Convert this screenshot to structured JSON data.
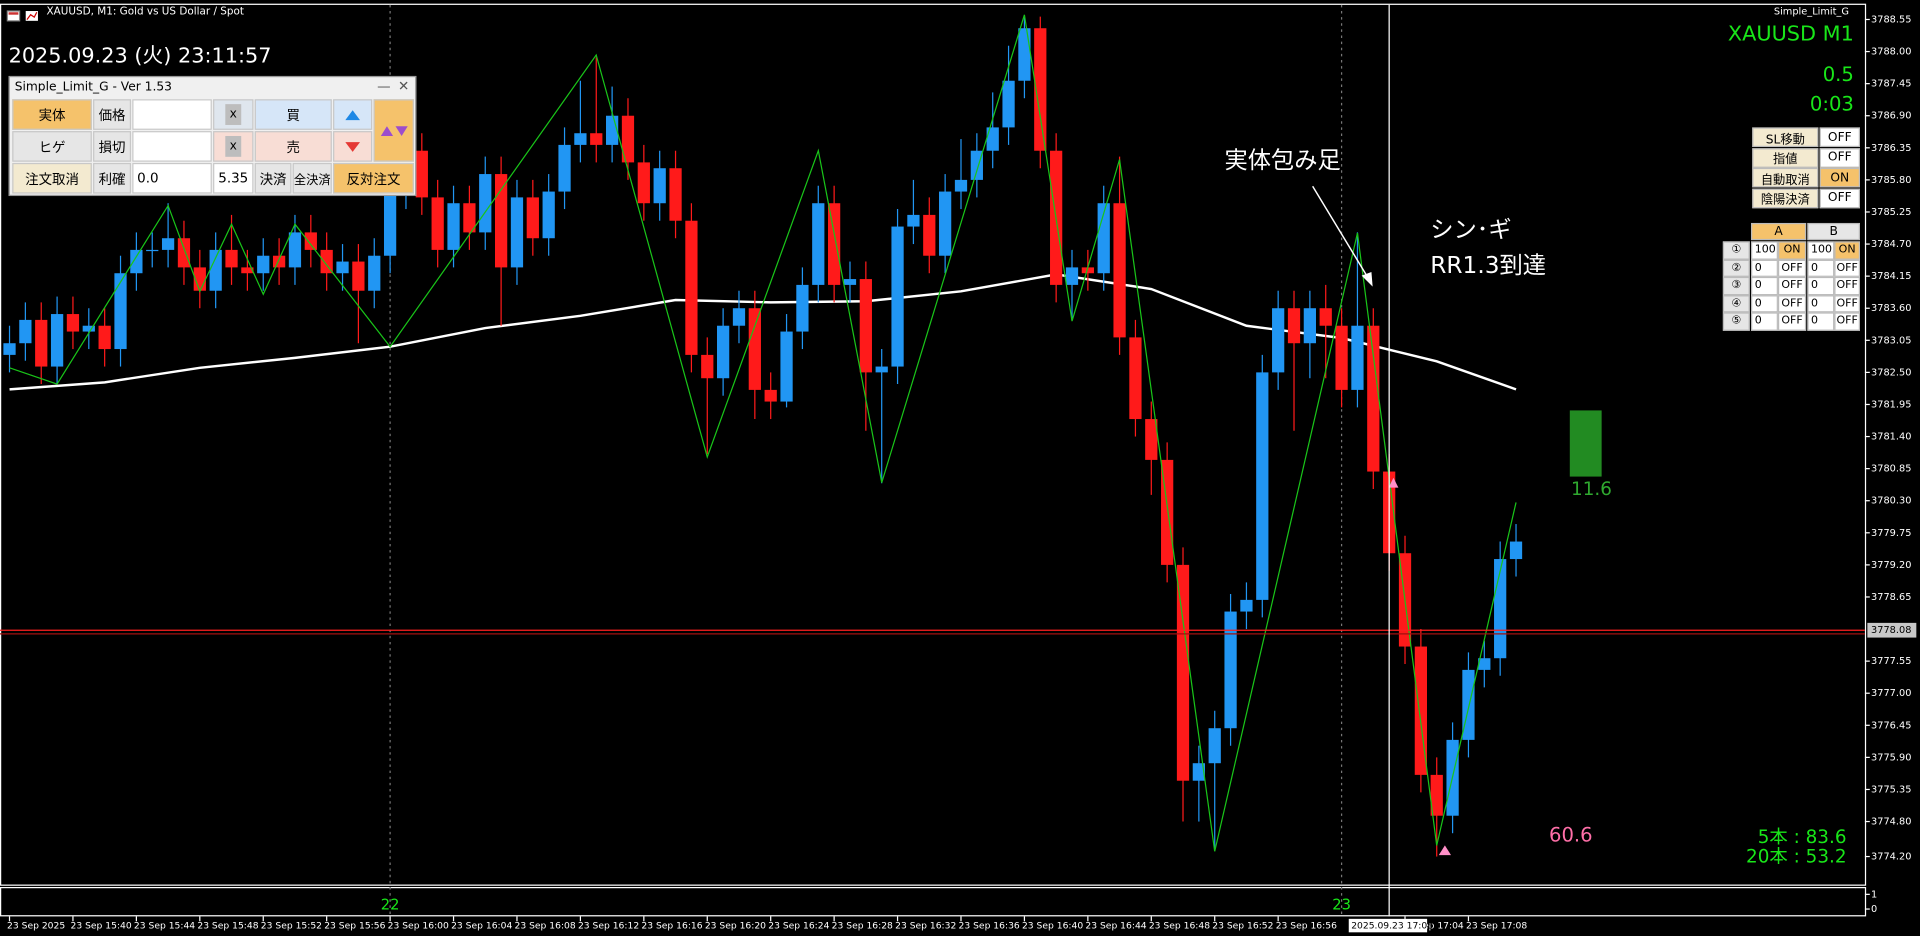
{
  "window": {
    "symbol_info": "XAUUSD, M1:  Gold vs US Dollar / Spot",
    "clock": "2025.09.23 (火) 23:11:57",
    "ea_name": "Simple_Limit_G",
    "symbol_tf": "XAUUSD  M1",
    "spread": "0.5",
    "countdown": "0:03"
  },
  "panel": {
    "title": "Simple_Limit_G - Ver 1.53",
    "body": "実体",
    "wick": "ヒゲ",
    "price": "価格",
    "stop": "損切",
    "take": "利確",
    "clear": "x",
    "buy": "買",
    "sell": "売",
    "cancel": "注文取消",
    "tp_value": "0.0",
    "lot": "5.35",
    "close": "決済",
    "close_all": "全決済",
    "reverse": "反対注文"
  },
  "status_table": [
    {
      "label": "SL移動",
      "state": "OFF"
    },
    {
      "label": "指値",
      "state": "OFF"
    },
    {
      "label": "自動取消",
      "state": "ON"
    },
    {
      "label": "陰陽決済",
      "state": "OFF"
    }
  ],
  "ab_table": {
    "headers": [
      "A",
      "B"
    ],
    "rows": [
      [
        "①",
        "100",
        "ON",
        "100",
        "ON"
      ],
      [
        "②",
        "0",
        "OFF",
        "0",
        "OFF"
      ],
      [
        "③",
        "0",
        "OFF",
        "0",
        "OFF"
      ],
      [
        "④",
        "0",
        "OFF",
        "0",
        "OFF"
      ],
      [
        "⑤",
        "0",
        "OFF",
        "0",
        "OFF"
      ]
    ]
  },
  "annotations": {
    "engulfing": "実体包み足",
    "signal": "シン･ギ",
    "rr": "RR1.3到達"
  },
  "stats": {
    "box_value": "11.6",
    "pink_value": "60.6",
    "line1": "5本 : 83.6",
    "line2": "20本 : 53.2"
  },
  "chart_data": {
    "type": "candlestick",
    "up_color": "#2196f3",
    "down_color": "#ff1a1a",
    "open": [
      3782.8,
      3783.0,
      3783.4,
      3782.6,
      3783.5,
      3783.2,
      3783.3,
      3782.9,
      3784.2,
      3784.6,
      3784.6,
      3784.8,
      3784.3,
      3783.9,
      3784.6,
      3784.3,
      3784.2,
      3784.5,
      3784.3,
      3784.9,
      3784.6,
      3784.2,
      3784.4,
      3783.9,
      3784.5,
      3785.6,
      3786.3,
      3785.5,
      3784.6,
      3785.4,
      3784.9,
      3785.9,
      3784.3,
      3785.5,
      3784.8,
      3785.6,
      3786.4,
      3786.6,
      3786.4,
      3786.9,
      3786.1,
      3785.4,
      3786.0,
      3785.1,
      3782.8,
      3782.4,
      3783.3,
      3783.6,
      3782.2,
      3782.0,
      3783.2,
      3784.0,
      3785.4,
      3784.0,
      3784.1,
      3782.5,
      3782.6,
      3785.0,
      3785.2,
      3784.5,
      3785.6,
      3785.8,
      3786.3,
      3786.7,
      3787.5,
      3788.4,
      3786.3,
      3784.0,
      3784.3,
      3784.2,
      3785.4,
      3783.1,
      3781.7,
      3781.0,
      3779.2,
      3775.5,
      3775.8,
      3776.4,
      3778.4,
      3778.6,
      3782.5,
      3783.6,
      3783.0,
      3783.6,
      3783.3,
      3782.2,
      3783.3,
      3780.8,
      3779.4,
      3777.8,
      3775.6,
      3774.9,
      3776.2,
      3777.4,
      3777.6,
      3779.3
    ],
    "high": [
      3783.3,
      3783.7,
      3783.7,
      3783.8,
      3783.8,
      3783.6,
      3783.6,
      3784.5,
      3784.9,
      3784.9,
      3785.4,
      3785.1,
      3784.6,
      3784.9,
      3785.2,
      3784.6,
      3784.8,
      3784.8,
      3785.2,
      3785.2,
      3784.9,
      3784.7,
      3784.7,
      3784.8,
      3785.9,
      3786.6,
      3786.6,
      3785.8,
      3785.7,
      3785.7,
      3786.2,
      3786.2,
      3785.8,
      3785.8,
      3785.9,
      3786.7,
      3787.5,
      3787.9,
      3787.4,
      3787.2,
      3786.4,
      3786.3,
      3786.3,
      3785.4,
      3783.1,
      3783.6,
      3783.9,
      3783.9,
      3782.5,
      3783.5,
      3784.3,
      3785.7,
      3785.7,
      3784.4,
      3784.4,
      3782.9,
      3785.3,
      3785.8,
      3785.5,
      3785.9,
      3786.5,
      3786.6,
      3787.3,
      3788.1,
      3788.6,
      3788.6,
      3786.6,
      3784.6,
      3784.6,
      3785.7,
      3786.2,
      3783.4,
      3782.0,
      3781.3,
      3779.5,
      3776.1,
      3776.7,
      3778.7,
      3778.9,
      3782.8,
      3783.9,
      3783.9,
      3783.9,
      3784.0,
      3783.6,
      3784.9,
      3783.6,
      3781.1,
      3779.7,
      3778.1,
      3775.9,
      3776.5,
      3777.7,
      3777.9,
      3779.6,
      3779.9
    ],
    "low": [
      3782.5,
      3782.7,
      3782.3,
      3782.3,
      3782.9,
      3782.9,
      3782.6,
      3782.6,
      3783.9,
      3784.3,
      3784.3,
      3784.0,
      3783.6,
      3783.6,
      3784.0,
      3783.9,
      3783.9,
      3784.0,
      3784.0,
      3784.3,
      3783.9,
      3783.9,
      3783.0,
      3783.6,
      3784.2,
      3785.3,
      3785.2,
      3784.3,
      3784.3,
      3784.6,
      3784.6,
      3783.3,
      3784.0,
      3784.5,
      3784.5,
      3785.3,
      3786.1,
      3786.1,
      3786.1,
      3785.8,
      3785.1,
      3785.1,
      3784.8,
      3782.5,
      3781.1,
      3782.1,
      3783.0,
      3781.7,
      3781.7,
      3781.9,
      3782.9,
      3783.7,
      3783.7,
      3783.7,
      3781.5,
      3780.6,
      3782.3,
      3784.7,
      3784.2,
      3784.2,
      3785.3,
      3785.5,
      3786.0,
      3786.4,
      3787.2,
      3786.0,
      3783.7,
      3783.4,
      3783.9,
      3783.9,
      3782.8,
      3781.4,
      3780.4,
      3778.9,
      3774.8,
      3774.8,
      3774.3,
      3776.1,
      3778.1,
      3778.3,
      3782.2,
      3781.5,
      3782.4,
      3782.4,
      3781.9,
      3781.9,
      3780.5,
      3779.1,
      3777.5,
      3775.3,
      3774.2,
      3774.6,
      3775.9,
      3777.1,
      3777.3,
      3779.0
    ],
    "close": [
      3783.0,
      3783.4,
      3782.6,
      3783.5,
      3783.2,
      3783.3,
      3782.9,
      3784.2,
      3784.6,
      3784.6,
      3784.8,
      3784.3,
      3783.9,
      3784.6,
      3784.3,
      3784.2,
      3784.5,
      3784.3,
      3784.9,
      3784.6,
      3784.2,
      3784.4,
      3783.9,
      3784.5,
      3785.6,
      3786.3,
      3785.5,
      3784.6,
      3785.4,
      3784.9,
      3785.9,
      3784.3,
      3785.5,
      3784.8,
      3785.6,
      3786.4,
      3786.6,
      3786.4,
      3786.9,
      3786.1,
      3785.4,
      3786.0,
      3785.1,
      3782.8,
      3782.4,
      3783.3,
      3783.6,
      3782.2,
      3782.0,
      3783.2,
      3784.0,
      3785.4,
      3784.0,
      3784.1,
      3782.5,
      3782.6,
      3785.0,
      3785.2,
      3784.5,
      3785.6,
      3785.8,
      3786.3,
      3786.7,
      3787.5,
      3788.4,
      3786.3,
      3784.0,
      3784.3,
      3784.2,
      3785.4,
      3783.1,
      3781.7,
      3781.0,
      3779.2,
      3775.5,
      3775.8,
      3776.4,
      3778.4,
      3778.6,
      3782.5,
      3783.6,
      3783.0,
      3783.6,
      3783.3,
      3782.2,
      3783.3,
      3780.8,
      3779.4,
      3777.8,
      3775.6,
      3774.9,
      3776.2,
      3777.4,
      3777.6,
      3779.3,
      3779.6
    ],
    "ma": {
      "color": "#ffffff",
      "x": [
        0,
        6,
        12,
        18,
        24,
        30,
        36,
        42,
        48,
        54,
        60,
        66,
        72,
        78,
        84,
        90,
        95
      ],
      "values": [
        3782.21,
        3782.33,
        3782.58,
        3782.75,
        3782.94,
        3783.26,
        3783.47,
        3783.74,
        3783.7,
        3783.72,
        3783.89,
        3784.18,
        3783.93,
        3783.3,
        3783.09,
        3782.69,
        3782.21
      ]
    },
    "zigzag": {
      "color": "#19c419",
      "x": [
        0,
        3,
        10,
        12,
        14,
        16,
        18,
        24,
        37,
        44,
        51,
        55,
        64,
        67,
        70,
        76,
        85,
        90,
        95
      ],
      "values": [
        3782.58,
        3782.3,
        3785.36,
        3783.89,
        3785.04,
        3783.84,
        3785.04,
        3782.94,
        3787.94,
        3781.05,
        3786.3,
        3780.61,
        3788.63,
        3783.38,
        3786.15,
        3774.29,
        3784.89,
        3774.39,
        3780.27
      ]
    },
    "current_price": 3778.08,
    "xlim": [
      -0.6,
      117
    ],
    "ylim": [
      3773.72,
      3788.8
    ],
    "yticks": [
      3788.55,
      {
        "value": 3788.0,
        "label": "3788.00"
      },
      3787.45,
      {
        "value": 3786.9,
        "label": "3786.90"
      },
      3786.35,
      {
        "value": 3785.8,
        "label": "3785.80"
      },
      3785.25,
      {
        "value": 3784.7,
        "label": "3784.70"
      },
      3784.15,
      {
        "value": 3783.6,
        "label": "3783.60"
      },
      3783.05,
      {
        "value": 3782.5,
        "label": "3782.50"
      },
      3781.95,
      {
        "value": 3781.4,
        "label": "3781.40"
      },
      3780.85,
      {
        "value": 3780.3,
        "label": "3780.30"
      },
      3779.75,
      {
        "value": 3779.2,
        "label": "3779.20"
      },
      3778.65,
      3777.55,
      {
        "value": 3777.0,
        "label": "3777.00"
      },
      3776.45,
      {
        "value": 3775.9,
        "label": "3775.90"
      },
      3775.35,
      {
        "value": 3774.8,
        "label": "3774.80"
      },
      {
        "value": 3774.2,
        "label": "3774.20"
      }
    ],
    "xticks": [
      {
        "value": 0,
        "label": "23 Sep 2025"
      },
      {
        "value": 4,
        "label": "23 Sep 15:40"
      },
      {
        "value": 8,
        "label": "23 Sep 15:44"
      },
      {
        "value": 12,
        "label": "23 Sep 15:48"
      },
      {
        "value": 16,
        "label": "23 Sep 15:52"
      },
      {
        "value": 20,
        "label": "23 Sep 15:56"
      },
      {
        "value": 24,
        "label": "23 Sep 16:00"
      },
      {
        "value": 28,
        "label": "23 Sep 16:04"
      },
      {
        "value": 32,
        "label": "23 Sep 16:08"
      },
      {
        "value": 36,
        "label": "23 Sep 16:12"
      },
      {
        "value": 40,
        "label": "23 Sep 16:16"
      },
      {
        "value": 44,
        "label": "23 Sep 16:20"
      },
      {
        "value": 48,
        "label": "23 Sep 16:24"
      },
      {
        "value": 52,
        "label": "23 Sep 16:28"
      },
      {
        "value": 56,
        "label": "23 Sep 16:32"
      },
      {
        "value": 60,
        "label": "23 Sep 16:36"
      },
      {
        "value": 64,
        "label": "23 Sep 16:40"
      },
      {
        "value": 68,
        "label": "23 Sep 16:44"
      },
      {
        "value": 72,
        "label": "23 Sep 16:48"
      },
      {
        "value": 76,
        "label": "23 Sep 16:52"
      },
      {
        "value": 80,
        "label": "23 Sep 16:56"
      },
      {
        "value": 88,
        "label": "23 Sep 17:04"
      },
      {
        "value": 92,
        "label": "23 Sep 17:08"
      }
    ],
    "separators": [
      {
        "value": 24,
        "label": "22"
      },
      {
        "value": 84,
        "label": "23"
      }
    ],
    "cursor": {
      "value": 87,
      "label": "2025.09.23 17:03"
    },
    "indicator_pane": {
      "ylim": [
        0,
        1
      ],
      "yticks": [
        1,
        0
      ]
    }
  }
}
